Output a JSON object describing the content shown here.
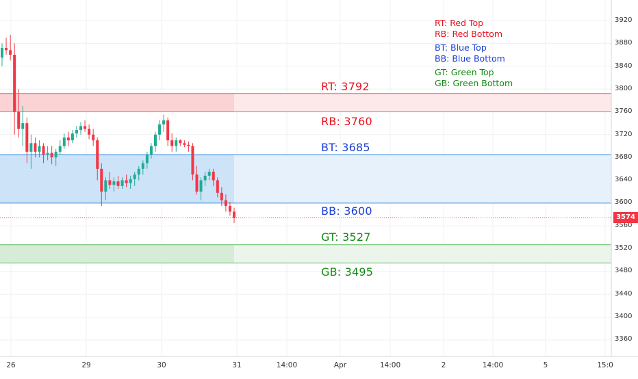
{
  "chart_data": {
    "type": "candlestick",
    "ylim": [
      3320,
      3935
    ],
    "y_ticks": [
      "3920",
      "3880",
      "3840",
      "3800",
      "3760",
      "3720",
      "3680",
      "3640",
      "3600",
      "3560",
      "3520",
      "3480",
      "3440",
      "3400",
      "3360"
    ],
    "x_ticks": [
      "26",
      "29",
      "30",
      "31",
      "14:00",
      "Apr",
      "14:00",
      "2",
      "14:00",
      "5",
      "15:0"
    ],
    "last_price": "3574",
    "colors": {
      "up": "#22ab94",
      "down": "#f23645",
      "red": "#f23645",
      "blue": "#2962ff",
      "green": "#089981"
    },
    "bands": [
      {
        "name": "red",
        "top": 3792,
        "bottom": 3760,
        "top_label": "RT: 3792",
        "bottom_label": "RB: 3760",
        "color": "#e8111f"
      },
      {
        "name": "blue",
        "top": 3685,
        "bottom": 3600,
        "top_label": "BT: 3685",
        "bottom_label": "BB: 3600",
        "color": "#1b3fd6"
      },
      {
        "name": "green",
        "top": 3527,
        "bottom": 3495,
        "top_label": "GT: 3527",
        "bottom_label": "GB: 3495",
        "color": "#138a13"
      }
    ],
    "legend": [
      [
        "RT: Red Top",
        "RB: Red Bottom"
      ],
      [
        "BT: Blue Top",
        "BB: Blue Bottom"
      ],
      [
        "GT: Green Top",
        "GB: Green Bottom"
      ]
    ],
    "candles": [
      [
        3855,
        3880,
        3840,
        3872
      ],
      [
        3872,
        3890,
        3860,
        3868
      ],
      [
        3868,
        3895,
        3850,
        3860
      ],
      [
        3860,
        3880,
        3720,
        3760
      ],
      [
        3760,
        3800,
        3715,
        3730
      ],
      [
        3730,
        3770,
        3700,
        3740
      ],
      [
        3740,
        3750,
        3670,
        3690
      ],
      [
        3690,
        3720,
        3660,
        3705
      ],
      [
        3705,
        3715,
        3680,
        3690
      ],
      [
        3690,
        3710,
        3680,
        3700
      ],
      [
        3700,
        3705,
        3670,
        3685
      ],
      [
        3685,
        3700,
        3675,
        3688
      ],
      [
        3688,
        3700,
        3668,
        3680
      ],
      [
        3680,
        3695,
        3665,
        3690
      ],
      [
        3690,
        3710,
        3685,
        3700
      ],
      [
        3700,
        3722,
        3695,
        3715
      ],
      [
        3715,
        3725,
        3700,
        3710
      ],
      [
        3710,
        3728,
        3705,
        3722
      ],
      [
        3722,
        3735,
        3715,
        3728
      ],
      [
        3728,
        3742,
        3720,
        3735
      ],
      [
        3735,
        3745,
        3725,
        3730
      ],
      [
        3730,
        3738,
        3712,
        3720
      ],
      [
        3720,
        3730,
        3700,
        3710
      ],
      [
        3710,
        3715,
        3640,
        3660
      ],
      [
        3660,
        3670,
        3595,
        3620
      ],
      [
        3620,
        3645,
        3605,
        3640
      ],
      [
        3640,
        3655,
        3625,
        3632
      ],
      [
        3632,
        3645,
        3620,
        3638
      ],
      [
        3638,
        3648,
        3625,
        3630
      ],
      [
        3630,
        3645,
        3625,
        3640
      ],
      [
        3640,
        3650,
        3628,
        3635
      ],
      [
        3635,
        3648,
        3625,
        3642
      ],
      [
        3642,
        3655,
        3630,
        3650
      ],
      [
        3650,
        3665,
        3640,
        3660
      ],
      [
        3660,
        3675,
        3650,
        3670
      ],
      [
        3670,
        3690,
        3660,
        3685
      ],
      [
        3685,
        3705,
        3678,
        3700
      ],
      [
        3700,
        3725,
        3690,
        3720
      ],
      [
        3720,
        3745,
        3710,
        3738
      ],
      [
        3738,
        3755,
        3725,
        3745
      ],
      [
        3745,
        3750,
        3700,
        3710
      ],
      [
        3710,
        3722,
        3690,
        3700
      ],
      [
        3700,
        3715,
        3690,
        3710
      ],
      [
        3710,
        3712,
        3700,
        3705
      ],
      [
        3705,
        3710,
        3698,
        3702
      ],
      [
        3702,
        3708,
        3690,
        3700
      ],
      [
        3700,
        3705,
        3640,
        3650
      ],
      [
        3650,
        3665,
        3615,
        3620
      ],
      [
        3620,
        3645,
        3605,
        3640
      ],
      [
        3640,
        3655,
        3630,
        3648
      ],
      [
        3648,
        3660,
        3640,
        3655
      ],
      [
        3655,
        3660,
        3630,
        3640
      ],
      [
        3640,
        3645,
        3610,
        3618
      ],
      [
        3618,
        3628,
        3595,
        3605
      ],
      [
        3605,
        3615,
        3585,
        3595
      ],
      [
        3595,
        3602,
        3578,
        3585
      ],
      [
        3585,
        3592,
        3565,
        3574
      ]
    ]
  }
}
